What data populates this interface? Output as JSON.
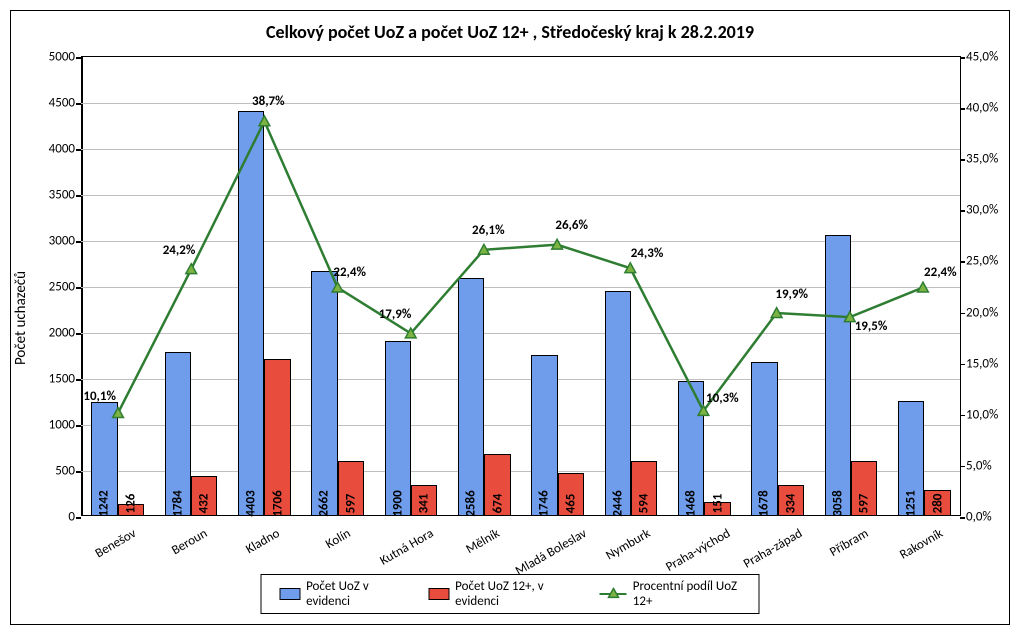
{
  "chart": {
    "type": "bar+line",
    "title": "Celkový počet UoZ a počet UoZ 12+ , Středočeský kraj k 28.2.2019",
    "y_axis_left": {
      "title": "Počet uchazečů",
      "min": 0,
      "max": 5000,
      "step": 500,
      "fontsize": 13
    },
    "y_axis_right": {
      "min": 0,
      "max": 45,
      "step": 5,
      "suffix": ",0%",
      "fontsize": 13
    },
    "categories": [
      "Benešov",
      "Beroun",
      "Kladno",
      "Kolín",
      "Kutná Hora",
      "Mělník",
      "Mladá Boleslav",
      "Nymburk",
      "Praha-východ",
      "Praha-západ",
      "Příbram",
      "Rakovník"
    ],
    "series_bar1": {
      "name": "Počet UoZ v evidenci",
      "color": "#6f9ceb",
      "values": [
        1242,
        1784,
        4403,
        2662,
        1900,
        2586,
        1746,
        2446,
        1468,
        1678,
        3058,
        1251
      ]
    },
    "series_bar2": {
      "name": "Počet UoZ 12+, v evidenci",
      "color": "#e74c3c",
      "values": [
        126,
        432,
        1706,
        597,
        341,
        674,
        465,
        594,
        151,
        334,
        597,
        280
      ]
    },
    "series_line": {
      "name": "Procentní podíl UoZ 12+",
      "color": "#2e7d32",
      "marker_fill": "#7cb342",
      "values": [
        10.1,
        24.2,
        38.7,
        22.4,
        17.9,
        26.1,
        26.6,
        24.3,
        10.3,
        19.9,
        19.5,
        22.4
      ],
      "labels": [
        "10,1%",
        "24,2%",
        "38,7%",
        "22,4%",
        "17,9%",
        "26,1%",
        "26,6%",
        "24,3%",
        "10,3%",
        "19,9%",
        "19,5%",
        "22,4%"
      ],
      "line_width": 2.5,
      "marker_size": 9
    },
    "background_color": "#ffffff",
    "grid_color": "#bfbfbf",
    "title_fontsize": 18,
    "x_label_fontsize": 13,
    "x_label_rotation": -30,
    "bar_label_fontsize": 13,
    "bar_group_width_ratio": 0.72,
    "border_color": "#000000"
  }
}
